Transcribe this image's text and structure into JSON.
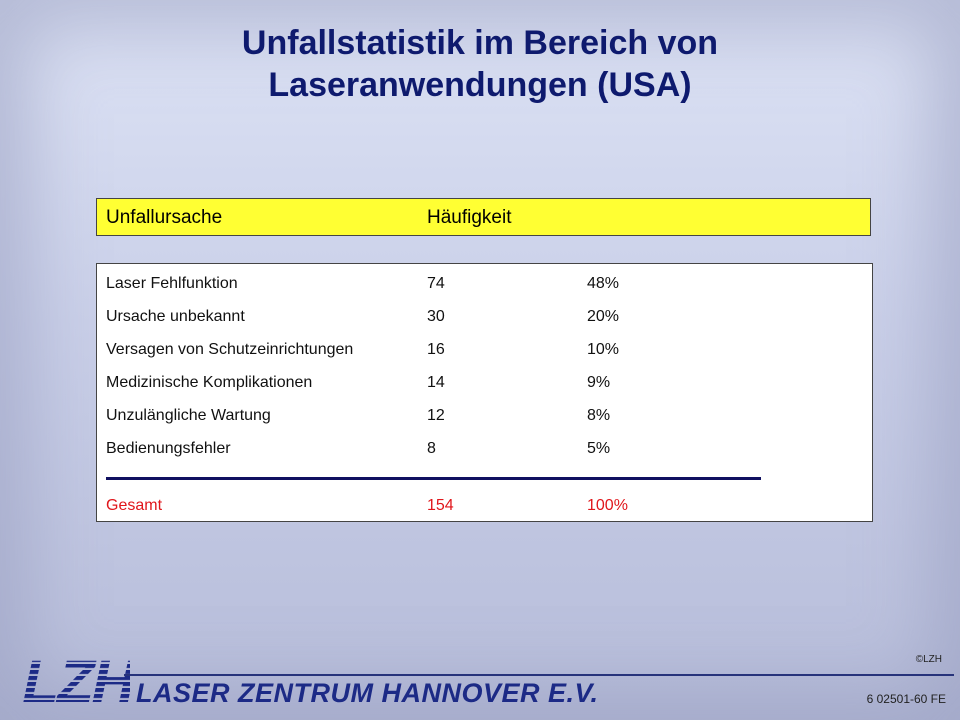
{
  "slide": {
    "title_line1": "Unfallstatistik im Bereich von",
    "title_line2": "Laseranwendungen (USA)"
  },
  "table": {
    "headers": [
      "Unfallursache",
      "Häufigkeit"
    ],
    "rows": [
      {
        "cause": "Laser Fehlfunktion",
        "count": "74",
        "percent": "48%"
      },
      {
        "cause": "Ursache unbekannt",
        "count": "30",
        "percent": "20%"
      },
      {
        "cause": "Versagen von Schutzeinrichtungen",
        "count": "16",
        "percent": "10%"
      },
      {
        "cause": "Medizinische Komplikationen",
        "count": "14",
        "percent": "9%"
      },
      {
        "cause": "Unzulängliche Wartung",
        "count": "12",
        "percent": "8%"
      },
      {
        "cause": "Bedienungsfehler",
        "count": "8",
        "percent": "5%"
      }
    ],
    "total": {
      "cause": "Gesamt",
      "count": "154",
      "percent": "100%"
    }
  },
  "footer": {
    "logo_text": "LZH",
    "organization": "LASER ZENTRUM HANNOVER E.V.",
    "copyright": "©LZH",
    "slide_code": "6 02501-60 FE"
  },
  "colors": {
    "title": "#0e1a6e",
    "header_background": "#ffff33",
    "total_text": "#e0161b",
    "brand": "#1c2a86"
  }
}
